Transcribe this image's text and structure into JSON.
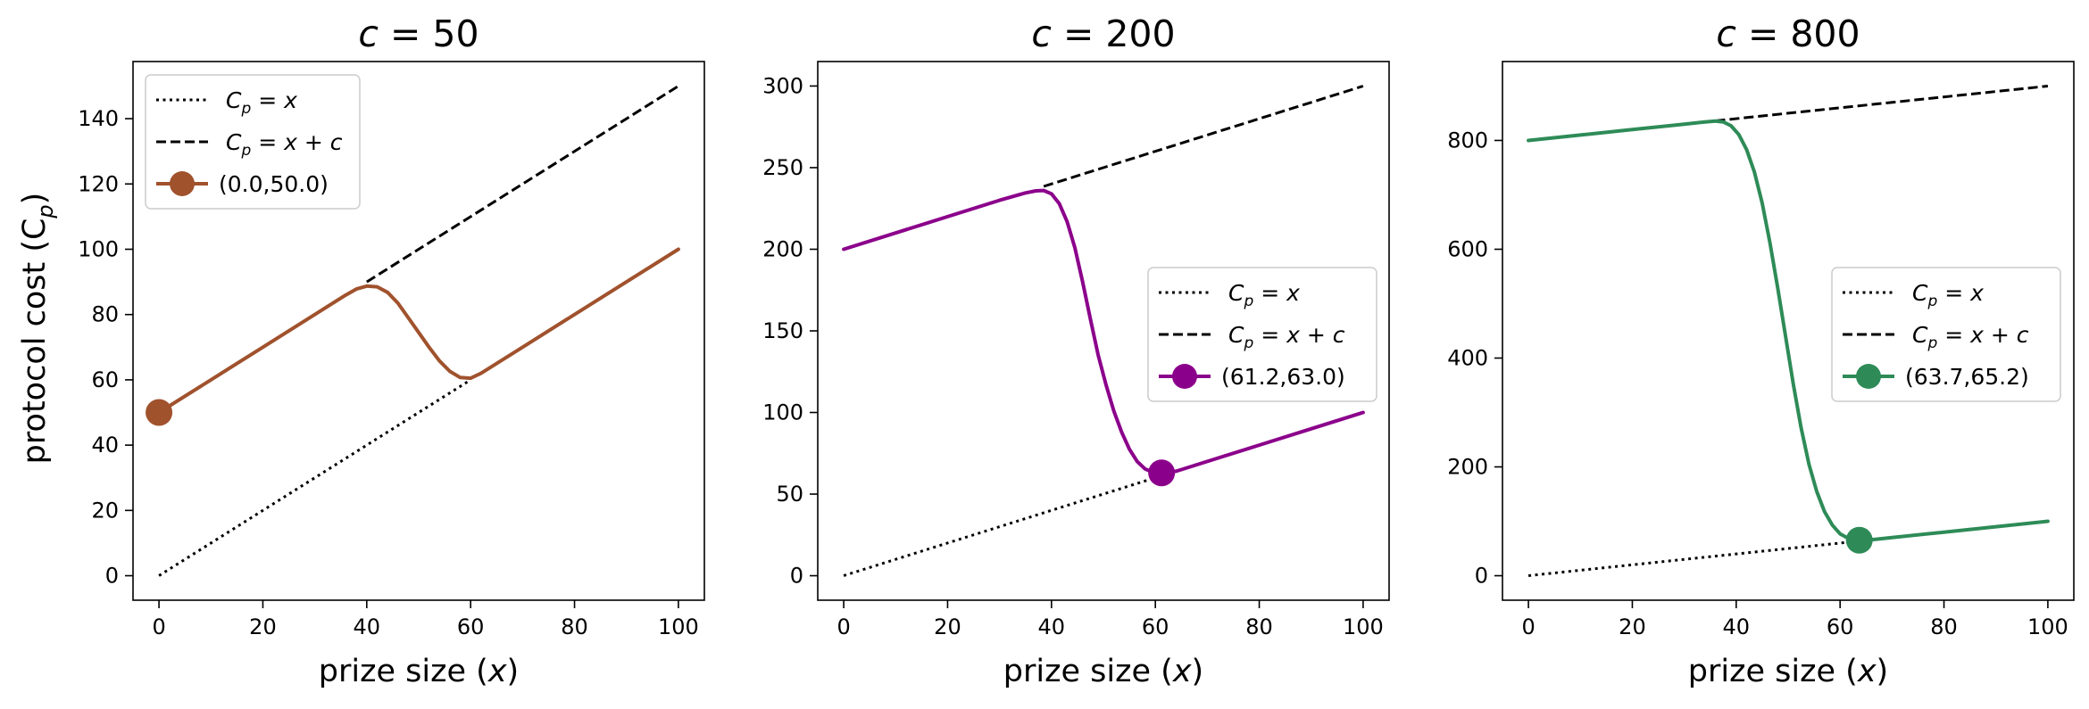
{
  "figure": {
    "ylabel": "protocol cost (C",
    "ylabel_sub": "p",
    "ylabel_close": ")"
  },
  "chart_data": [
    {
      "type": "line",
      "title_var": "c",
      "title_value": "= 50",
      "xlabel": "prize size (",
      "xlabel_var": "x",
      "xlabel_close": ")",
      "xlim": [
        -5,
        105
      ],
      "ylim": [
        -7.5,
        157.5
      ],
      "xticks": [
        0,
        20,
        40,
        60,
        80,
        100
      ],
      "yticks": [
        0,
        20,
        40,
        60,
        80,
        100,
        120,
        140
      ],
      "c": 50,
      "color": "#a0522d",
      "marker": [
        0.0,
        50.0
      ],
      "marker_label": "(0.0,50.0)",
      "legend": "top-left",
      "series": [
        {
          "style": "dotted",
          "legend_label": "C_p = x",
          "x": [
            0,
            100
          ],
          "y": [
            0,
            100
          ]
        },
        {
          "style": "dashed",
          "legend_label": "C_p = x + c",
          "x": [
            0,
            100
          ],
          "y": [
            50,
            150
          ]
        },
        {
          "style": "solid",
          "legend_label": "(0.0,50.0)",
          "x": [
            0,
            10,
            20,
            30,
            36,
            38,
            40,
            42,
            44,
            46,
            48,
            50,
            52,
            54,
            56,
            58,
            60,
            62,
            66,
            70,
            80,
            90,
            100
          ],
          "y": [
            50,
            60,
            70,
            80,
            86,
            87.8,
            88.7,
            88.5,
            86.8,
            83.5,
            79,
            74.5,
            70,
            65.8,
            62.6,
            60.7,
            60.5,
            62,
            66,
            70,
            80,
            90,
            100
          ]
        }
      ]
    },
    {
      "type": "line",
      "title_var": "c",
      "title_value": "= 200",
      "xlabel": "prize size (",
      "xlabel_var": "x",
      "xlabel_close": ")",
      "xlim": [
        -5,
        105
      ],
      "ylim": [
        -15,
        315
      ],
      "xticks": [
        0,
        20,
        40,
        60,
        80,
        100
      ],
      "yticks": [
        0,
        50,
        100,
        150,
        200,
        250,
        300
      ],
      "c": 200,
      "color": "#8b008b",
      "marker": [
        61.2,
        63.0
      ],
      "marker_label": "(61.2,63.0)",
      "legend": "center-right",
      "series": [
        {
          "style": "dotted",
          "legend_label": "C_p = x",
          "x": [
            0,
            100
          ],
          "y": [
            0,
            100
          ]
        },
        {
          "style": "dashed",
          "legend_label": "C_p = x + c",
          "x": [
            0,
            100
          ],
          "y": [
            200,
            300
          ]
        },
        {
          "style": "solid",
          "legend_label": "(61.2,63.0)",
          "x": [
            0,
            10,
            20,
            30,
            35,
            37,
            38.5,
            40,
            41.5,
            43,
            44.5,
            46,
            47.5,
            49,
            50.5,
            52,
            53.5,
            55,
            56.5,
            58,
            59.5,
            61.2,
            64,
            70,
            80,
            90,
            100
          ],
          "y": [
            200,
            210,
            220,
            230,
            234.5,
            235.8,
            236,
            234,
            228,
            217,
            201,
            180,
            157,
            135,
            117,
            101,
            88,
            77.5,
            70,
            65.5,
            63.3,
            63,
            64,
            70,
            80,
            90,
            100
          ]
        }
      ]
    },
    {
      "type": "line",
      "title_var": "c",
      "title_value": "= 800",
      "xlabel": "prize size (",
      "xlabel_var": "x",
      "xlabel_close": ")",
      "xlim": [
        -5,
        105
      ],
      "ylim": [
        -45,
        945
      ],
      "xticks": [
        0,
        20,
        40,
        60,
        80,
        100
      ],
      "yticks": [
        0,
        200,
        400,
        600,
        800
      ],
      "c": 800,
      "color": "#2e8b57",
      "marker": [
        63.7,
        65.2
      ],
      "marker_label": "(63.7,65.2)",
      "legend": "center-right",
      "series": [
        {
          "style": "dotted",
          "legend_label": "C_p = x",
          "x": [
            0,
            100
          ],
          "y": [
            0,
            100
          ]
        },
        {
          "style": "dashed",
          "legend_label": "C_p = x + c",
          "x": [
            0,
            100
          ],
          "y": [
            800,
            900
          ]
        },
        {
          "style": "solid",
          "legend_label": "(63.7,65.2)",
          "x": [
            0,
            10,
            20,
            30,
            34,
            36,
            37.5,
            39,
            40.5,
            42,
            43.5,
            45,
            46.5,
            48,
            49.5,
            51,
            52.5,
            54,
            55.5,
            57,
            58.5,
            60,
            61.5,
            63.7,
            66,
            70,
            80,
            90,
            100
          ],
          "y": [
            800,
            810,
            820,
            830,
            834,
            835.5,
            834,
            827,
            811,
            783,
            742,
            685,
            612,
            528,
            440,
            352,
            272,
            205,
            155,
            118,
            93,
            77,
            69,
            65.2,
            66,
            70,
            80,
            90,
            100
          ]
        }
      ]
    }
  ]
}
